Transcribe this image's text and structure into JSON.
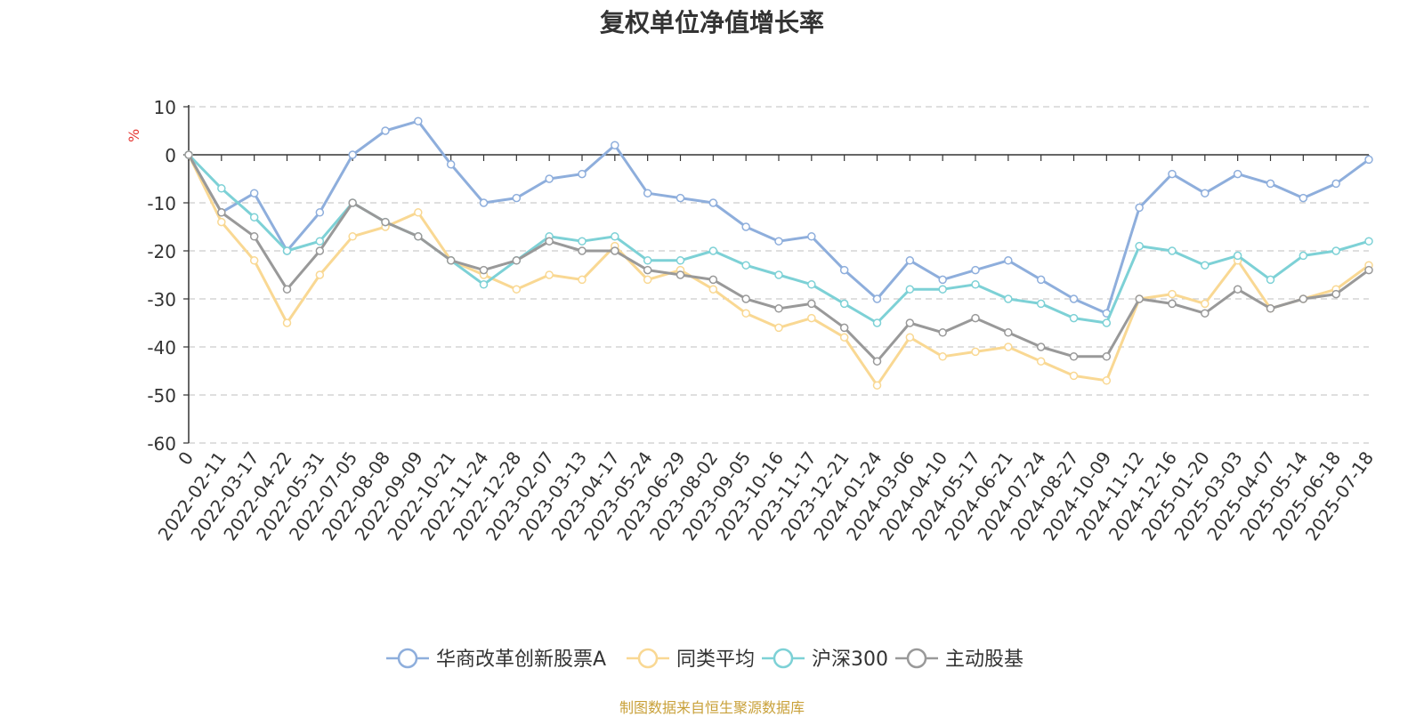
{
  "chart_data": {
    "type": "line",
    "title": "复权单位净值增长率",
    "ylabel": "%",
    "ylim": [
      -60,
      10
    ],
    "yticks": [
      10,
      0,
      -10,
      -20,
      -30,
      -40,
      -50,
      -60
    ],
    "grid": true,
    "legend_position": "bottom",
    "x": [
      "0",
      "2022-02-11",
      "2022-03-17",
      "2022-04-22",
      "2022-05-31",
      "2022-07-05",
      "2022-08-08",
      "2022-09-09",
      "2022-10-21",
      "2022-11-24",
      "2022-12-28",
      "2023-02-07",
      "2023-03-13",
      "2023-04-17",
      "2023-05-24",
      "2023-06-29",
      "2023-08-02",
      "2023-09-05",
      "2023-10-16",
      "2023-11-17",
      "2023-12-21",
      "2024-01-24",
      "2024-03-06",
      "2024-04-10",
      "2024-05-17",
      "2024-06-21",
      "2024-07-24",
      "2024-08-27",
      "2024-10-09",
      "2024-11-12",
      "2024-12-16",
      "2025-01-20",
      "2025-03-03",
      "2025-04-07",
      "2025-05-14",
      "2025-06-18",
      "2025-07-18"
    ],
    "series": [
      {
        "name": "华商改革创新股票A",
        "color": "#8eaedc",
        "values": [
          0,
          -12,
          -8,
          -20,
          -12,
          0,
          5,
          7,
          -2,
          -10,
          -9,
          -5,
          -4,
          2,
          -8,
          -9,
          -10,
          -15,
          -18,
          -17,
          -24,
          -30,
          -22,
          -26,
          -24,
          -22,
          -26,
          -30,
          -33,
          -11,
          -4,
          -8,
          -4,
          -6,
          -9,
          -6,
          -1
        ]
      },
      {
        "name": "同类平均",
        "color": "#f9d893",
        "values": [
          0,
          -14,
          -22,
          -35,
          -25,
          -17,
          -15,
          -12,
          -22,
          -25,
          -28,
          -25,
          -26,
          -19,
          -26,
          -24,
          -28,
          -33,
          -36,
          -34,
          -38,
          -48,
          -38,
          -42,
          -41,
          -40,
          -43,
          -46,
          -47,
          -30,
          -29,
          -31,
          -22,
          -32,
          -30,
          -28,
          -23
        ]
      },
      {
        "name": "沪深300",
        "color": "#7dd1d6",
        "values": [
          0,
          -7,
          -13,
          -20,
          -18,
          -10,
          -14,
          -17,
          -22,
          -27,
          -22,
          -17,
          -18,
          -17,
          -22,
          -22,
          -20,
          -23,
          -25,
          -27,
          -31,
          -35,
          -28,
          -28,
          -27,
          -30,
          -31,
          -34,
          -35,
          -19,
          -20,
          -23,
          -21,
          -26,
          -21,
          -20,
          -18
        ]
      },
      {
        "name": "主动股基",
        "color": "#999999",
        "values": [
          0,
          -12,
          -17,
          -28,
          -20,
          -10,
          -14,
          -17,
          -22,
          -24,
          -22,
          -18,
          -20,
          -20,
          -24,
          -25,
          -26,
          -30,
          -32,
          -31,
          -36,
          -43,
          -35,
          -37,
          -34,
          -37,
          -40,
          -42,
          -42,
          -30,
          -31,
          -33,
          -28,
          -32,
          -30,
          -29,
          -24
        ]
      }
    ]
  },
  "source": "制图数据来自恒生聚源数据库"
}
